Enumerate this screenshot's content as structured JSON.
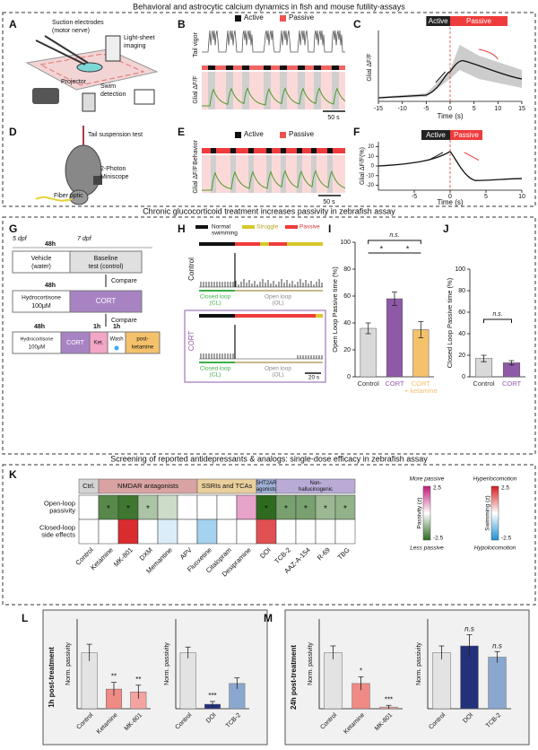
{
  "sections": [
    {
      "title": "Behavioral and astrocytic calcium dynamics in fish and mouse futility-assays"
    },
    {
      "title": "Chronic glucocorticoid treatment increases passivity in zebrafish assay"
    },
    {
      "title": "Screening of reported antidepressants & analogs: single-dose efficacy in zebrafish assay"
    }
  ],
  "A": {
    "letter": "A",
    "labels": [
      "Suction electrodes",
      "(motor nerve)",
      "Light-sheet",
      "imaging",
      "Projector",
      "Swim",
      "detection"
    ]
  },
  "B": {
    "letter": "B",
    "legend": [
      "Active",
      "Passive"
    ],
    "ylabels": [
      "Tail vigor",
      "Glial ΔF/F"
    ],
    "scale": "50 s"
  },
  "C": {
    "letter": "C",
    "legend": [
      "Active",
      "Passive"
    ],
    "ylabel": "Glial ΔF/F",
    "xlabel": "Time (s)",
    "xlim": [
      -15,
      15
    ],
    "xticks": [
      -15,
      -10,
      -5,
      0,
      5,
      10,
      15
    ]
  },
  "D": {
    "letter": "D",
    "labels": [
      "Tail suspension test",
      "2-Photon",
      "Miniscope",
      "Fiber optic"
    ]
  },
  "E": {
    "letter": "E",
    "legend": [
      "Active",
      "Passive"
    ],
    "ylabels": [
      "Behavior",
      "Glial ΔF/F"
    ],
    "scale": "50 s"
  },
  "F": {
    "letter": "F",
    "legend": [
      "Active",
      "Passive"
    ],
    "ylabel": "Glial ΔF/F(%)",
    "xlabel": "Time (s)",
    "xlim": [
      -10,
      10
    ],
    "xticks": [
      -5,
      0,
      5,
      10
    ],
    "ylim": [
      -25,
      25
    ],
    "yticks": [
      20,
      10,
      0,
      -10,
      -20
    ]
  },
  "G": {
    "letter": "G",
    "texts": {
      "dpf5": "5 dpf",
      "dpf7": "7 dpf",
      "h48a": "48h",
      "vehicle": "Vehicle",
      "water": "(water)",
      "baseline": "Baseline",
      "control": "test (control)",
      "compare1": "Compare",
      "h48b": "48h",
      "hydro1": "Hydrocortisone",
      "dose1": "100µM",
      "cort1": "CORT",
      "compare2": "Compare",
      "h48c": "48h",
      "h1a": "1h",
      "h1b": "1h",
      "hydro2": "Hydrocortisone",
      "dose2": "100µM",
      "cort2": "CORT",
      "ket": "Ket.",
      "wash": "Wash",
      "post": "post-",
      "postket": "ketamine"
    }
  },
  "H": {
    "letter": "H",
    "legend": [
      [
        "Normal",
        "swimming"
      ],
      [
        "Struggle"
      ],
      [
        "Passive"
      ]
    ],
    "rows": [
      "Control",
      "CORT"
    ],
    "closed": [
      "Closed loop",
      "(CL)"
    ],
    "open": [
      "Open loop",
      "(OL)"
    ],
    "scale": "20 s"
  },
  "I": {
    "letter": "I",
    "ylabel": "Open Loop Passive time (%)",
    "ylim": [
      0,
      100
    ],
    "yticks": [
      0,
      20,
      40,
      60,
      80,
      100
    ],
    "categories": [
      [
        "Control"
      ],
      [
        "CORT"
      ],
      [
        "CORT",
        "+ ketamine"
      ]
    ],
    "values": [
      36,
      58,
      35
    ],
    "errors": [
      4,
      5,
      6
    ],
    "colors": [
      "#d9d9d9",
      "#8e5aa8",
      "#f5c26b"
    ],
    "significance": [
      "n.s.",
      "*",
      "*"
    ]
  },
  "J": {
    "letter": "J",
    "ylabel": "Closed Loop Passive time (%)",
    "ylim": [
      0,
      100
    ],
    "yticks": [
      0,
      20,
      40,
      60,
      80,
      100
    ],
    "categories": [
      [
        "Control"
      ],
      [
        "CORT"
      ]
    ],
    "values": [
      17,
      13
    ],
    "errors": [
      3,
      2
    ],
    "colors": [
      "#d9d9d9",
      "#8e5aa8"
    ],
    "significance": [
      "n.s."
    ]
  },
  "K": {
    "letter": "K",
    "groups": [
      {
        "label": [
          "Ctrl."
        ],
        "count": 1,
        "color": "#d4d4d4"
      },
      {
        "label": [
          "NMDAR antagonists"
        ],
        "count": 5,
        "color": "#d9a3a3"
      },
      {
        "label": [
          "SSRIs and TCAs"
        ],
        "count": 3,
        "color": "#e8cf9c"
      },
      {
        "label": [
          "5HT2AR",
          "agonists"
        ],
        "count": 1,
        "color": "#9fb1d6"
      },
      {
        "label": [
          "Non-",
          "hallucinogenic"
        ],
        "count": 4,
        "color": "#b9abd6"
      }
    ],
    "rows": [
      [
        "Open-loop",
        "passivity"
      ],
      [
        "Closed-loop",
        "side effects"
      ]
    ],
    "drugs": [
      "Control",
      "Ketamine",
      "MK-801",
      "DXM",
      "Memantine",
      "APV",
      "Fluoxetine",
      "Citalopram",
      "Desipramine",
      "DOI",
      "TCB-2",
      "AAZ-A-154",
      "R-69",
      "TBG"
    ],
    "passivity": [
      0,
      -2,
      -2.3,
      -1,
      -0.6,
      0,
      0,
      0,
      1,
      -2.5,
      -1.6,
      -1.6,
      -1.2,
      -1.3
    ],
    "swimming": [
      0,
      0,
      2.3,
      0,
      -0.4,
      0,
      -1,
      0,
      0,
      1.9,
      0,
      0,
      0,
      0
    ],
    "stars": [
      null,
      "*",
      "*",
      "*",
      null,
      null,
      null,
      null,
      null,
      "*",
      "*",
      "*",
      "*",
      "*"
    ],
    "zlim": [
      -2.5,
      2.5
    ],
    "passivity_colors": [
      "#2e6b1e",
      "#c2187a"
    ],
    "swimming_colors": [
      "#1f8fd6",
      "#d7191c"
    ],
    "colorbars": {
      "more": "More passive",
      "less": "Less passive",
      "pz": "Passivity (z)",
      "hyper": "Hyperlocomotion",
      "hypo": "Hypolocomotion",
      "sz": "Swimming (z)"
    }
  },
  "L": {
    "letter": "L",
    "title": "1h post-treatment",
    "ylabel": "Norm. passivity",
    "ylim": [
      0,
      1.6
    ],
    "charts": [
      {
        "categories": [
          "Control",
          "Ketamine",
          "MK-801"
        ],
        "values": [
          1.0,
          0.35,
          0.3
        ],
        "errors": [
          0.15,
          0.12,
          0.12
        ],
        "colors": [
          "#e3e3e3",
          "#ef8a84",
          "#f3a3a0"
        ],
        "significance": [
          null,
          "**",
          "**"
        ]
      },
      {
        "categories": [
          "Control",
          "DOI",
          "TCB-2"
        ],
        "values": [
          1.0,
          0.08,
          0.45
        ],
        "errors": [
          0.1,
          0.05,
          0.1
        ],
        "colors": [
          "#e3e3e3",
          "#23307a",
          "#8aa8cf"
        ],
        "significance": [
          null,
          "***",
          null
        ]
      }
    ]
  },
  "M": {
    "letter": "M",
    "title": "24h post-treatment",
    "ylabel": "Norm. passivity",
    "ylim": [
      0,
      1.6
    ],
    "charts": [
      {
        "categories": [
          "Control",
          "Ketamine",
          "MK-801"
        ],
        "values": [
          1.0,
          0.45,
          0.03
        ],
        "errors": [
          0.12,
          0.12,
          0.03
        ],
        "colors": [
          "#e3e3e3",
          "#ef8a84",
          "#f3a3a0"
        ],
        "significance": [
          null,
          "*",
          "***"
        ]
      },
      {
        "categories": [
          "Control",
          "DOI",
          "TCB-2"
        ],
        "values": [
          1.0,
          1.12,
          0.92
        ],
        "errors": [
          0.12,
          0.2,
          0.1
        ],
        "colors": [
          "#e3e3e3",
          "#23307a",
          "#8aa8cf"
        ],
        "significance": [
          null,
          "n.s",
          "n.s"
        ]
      }
    ]
  }
}
